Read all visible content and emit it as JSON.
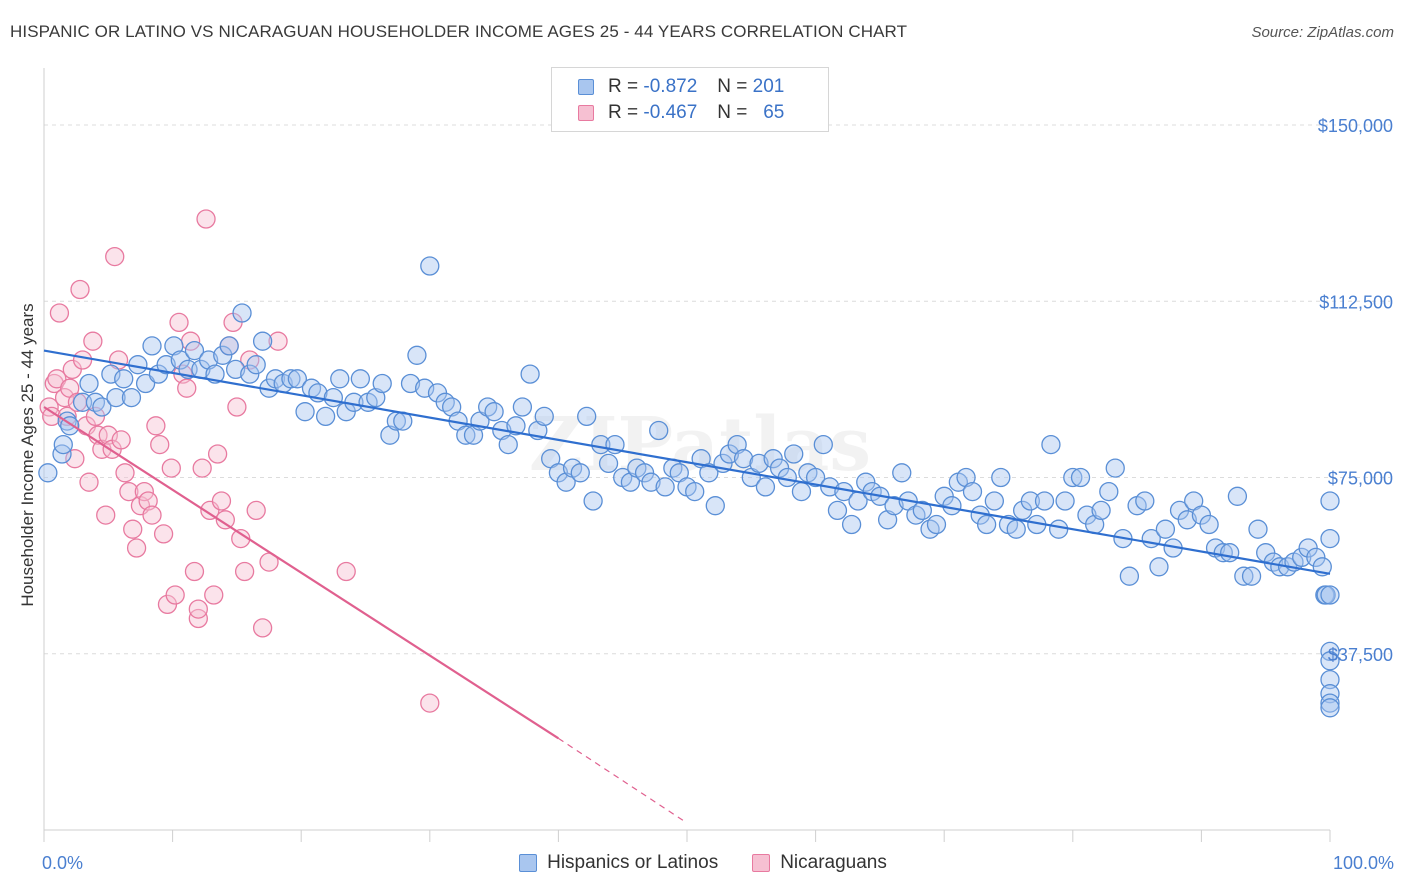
{
  "title": "HISPANIC OR LATINO VS NICARAGUAN HOUSEHOLDER INCOME AGES 25 - 44 YEARS CORRELATION CHART",
  "source": "Source: ZipAtlas.com",
  "watermark": "ZIPatlas",
  "colors": {
    "blue": "#5a8fd6",
    "blue_fill": "#a9c6ef",
    "blue_line": "#2f6fcf",
    "pink": "#e87aa0",
    "pink_fill": "#f6c0d2",
    "pink_line": "#e0608f",
    "tick_label": "#4a7fd0"
  },
  "legend": {
    "rows": [
      {
        "r_label": "R =",
        "r_value": "-0.872",
        "n_label": "N =",
        "n_value": "201"
      },
      {
        "r_label": "R =",
        "r_value": "-0.467",
        "n_label": "N =",
        "n_value": "65"
      }
    ]
  },
  "bottom_legend": [
    "Hispanics or Latinos",
    "Nicaraguans"
  ],
  "chart_data": {
    "type": "scatter",
    "xlabel": "",
    "ylabel": "Householder Income Ages 25 - 44 years",
    "xlim": [
      0,
      100
    ],
    "ylim": [
      0,
      160000
    ],
    "x_tick_labels": [
      "0.0%",
      "100.0%"
    ],
    "y_ticks": [
      37500,
      75000,
      112500,
      150000
    ],
    "y_tick_labels": [
      "$37,500",
      "$75,000",
      "$112,500",
      "$150,000"
    ],
    "grid": true,
    "series": [
      {
        "name": "Hispanics or Latinos",
        "trend": {
          "x": [
            0,
            100
          ],
          "y": [
            102000,
            54500
          ]
        },
        "points": [
          [
            0.3,
            76000
          ],
          [
            1.4,
            80000
          ],
          [
            1.5,
            82000
          ],
          [
            1.8,
            87000
          ],
          [
            2.0,
            86000
          ],
          [
            3.0,
            91000
          ],
          [
            3.5,
            95000
          ],
          [
            4.0,
            91000
          ],
          [
            4.5,
            90000
          ],
          [
            5.2,
            97000
          ],
          [
            5.6,
            92000
          ],
          [
            6.2,
            96000
          ],
          [
            6.8,
            92000
          ],
          [
            7.3,
            99000
          ],
          [
            7.9,
            95000
          ],
          [
            8.4,
            103000
          ],
          [
            8.9,
            97000
          ],
          [
            9.5,
            99000
          ],
          [
            10.1,
            103000
          ],
          [
            10.6,
            100000
          ],
          [
            11.2,
            98000
          ],
          [
            11.7,
            102000
          ],
          [
            12.2,
            98000
          ],
          [
            12.8,
            100000
          ],
          [
            13.3,
            97000
          ],
          [
            13.9,
            101000
          ],
          [
            14.4,
            103000
          ],
          [
            14.9,
            98000
          ],
          [
            15.4,
            110000
          ],
          [
            16.0,
            97000
          ],
          [
            16.5,
            99000
          ],
          [
            17.0,
            104000
          ],
          [
            17.5,
            94000
          ],
          [
            18.0,
            96000
          ],
          [
            18.6,
            95000
          ],
          [
            19.2,
            96000
          ],
          [
            19.7,
            96000
          ],
          [
            20.3,
            89000
          ],
          [
            20.8,
            94000
          ],
          [
            21.3,
            93000
          ],
          [
            21.9,
            88000
          ],
          [
            22.5,
            92000
          ],
          [
            23.0,
            96000
          ],
          [
            23.5,
            89000
          ],
          [
            24.1,
            91000
          ],
          [
            24.6,
            96000
          ],
          [
            25.2,
            91000
          ],
          [
            25.8,
            92000
          ],
          [
            26.3,
            95000
          ],
          [
            26.9,
            84000
          ],
          [
            27.4,
            87000
          ],
          [
            27.9,
            87000
          ],
          [
            28.5,
            95000
          ],
          [
            29.0,
            101000
          ],
          [
            29.6,
            94000
          ],
          [
            30.0,
            120000
          ],
          [
            30.6,
            93000
          ],
          [
            31.2,
            91000
          ],
          [
            31.7,
            90000
          ],
          [
            32.2,
            87000
          ],
          [
            32.8,
            84000
          ],
          [
            33.4,
            84000
          ],
          [
            33.9,
            87000
          ],
          [
            34.5,
            90000
          ],
          [
            35.0,
            89000
          ],
          [
            35.6,
            85000
          ],
          [
            36.1,
            82000
          ],
          [
            36.7,
            86000
          ],
          [
            37.2,
            90000
          ],
          [
            37.8,
            97000
          ],
          [
            38.4,
            85000
          ],
          [
            38.9,
            88000
          ],
          [
            39.4,
            79000
          ],
          [
            40.0,
            76000
          ],
          [
            40.6,
            74000
          ],
          [
            41.1,
            77000
          ],
          [
            41.7,
            76000
          ],
          [
            42.2,
            88000
          ],
          [
            42.7,
            70000
          ],
          [
            43.3,
            82000
          ],
          [
            43.9,
            78000
          ],
          [
            44.4,
            82000
          ],
          [
            45.0,
            75000
          ],
          [
            45.6,
            74000
          ],
          [
            46.1,
            77000
          ],
          [
            46.7,
            76000
          ],
          [
            47.2,
            74000
          ],
          [
            47.8,
            85000
          ],
          [
            48.3,
            73000
          ],
          [
            48.9,
            77000
          ],
          [
            49.4,
            76000
          ],
          [
            50.0,
            73000
          ],
          [
            50.6,
            72000
          ],
          [
            51.1,
            79000
          ],
          [
            51.7,
            76000
          ],
          [
            52.2,
            69000
          ],
          [
            52.8,
            78000
          ],
          [
            53.3,
            80000
          ],
          [
            53.9,
            82000
          ],
          [
            54.4,
            79000
          ],
          [
            55.0,
            75000
          ],
          [
            55.6,
            78000
          ],
          [
            56.1,
            73000
          ],
          [
            56.7,
            79000
          ],
          [
            57.2,
            77000
          ],
          [
            57.8,
            75000
          ],
          [
            58.3,
            80000
          ],
          [
            58.9,
            72000
          ],
          [
            59.4,
            76000
          ],
          [
            60.0,
            75000
          ],
          [
            60.6,
            82000
          ],
          [
            61.1,
            73000
          ],
          [
            61.7,
            68000
          ],
          [
            62.2,
            72000
          ],
          [
            62.8,
            65000
          ],
          [
            63.3,
            70000
          ],
          [
            63.9,
            74000
          ],
          [
            64.4,
            72000
          ],
          [
            65.0,
            71000
          ],
          [
            65.6,
            66000
          ],
          [
            66.1,
            69000
          ],
          [
            66.7,
            76000
          ],
          [
            67.2,
            70000
          ],
          [
            67.8,
            67000
          ],
          [
            68.3,
            68000
          ],
          [
            68.9,
            64000
          ],
          [
            69.4,
            65000
          ],
          [
            70.0,
            71000
          ],
          [
            70.6,
            69000
          ],
          [
            71.1,
            74000
          ],
          [
            71.7,
            75000
          ],
          [
            72.2,
            72000
          ],
          [
            72.8,
            67000
          ],
          [
            73.3,
            65000
          ],
          [
            73.9,
            70000
          ],
          [
            74.4,
            75000
          ],
          [
            75.0,
            65000
          ],
          [
            75.6,
            64000
          ],
          [
            76.1,
            68000
          ],
          [
            76.7,
            70000
          ],
          [
            77.2,
            65000
          ],
          [
            77.8,
            70000
          ],
          [
            78.3,
            82000
          ],
          [
            78.9,
            64000
          ],
          [
            79.4,
            70000
          ],
          [
            80.0,
            75000
          ],
          [
            80.6,
            75000
          ],
          [
            81.1,
            67000
          ],
          [
            81.7,
            65000
          ],
          [
            82.2,
            68000
          ],
          [
            82.8,
            72000
          ],
          [
            83.3,
            77000
          ],
          [
            83.9,
            62000
          ],
          [
            84.4,
            54000
          ],
          [
            85.0,
            69000
          ],
          [
            85.6,
            70000
          ],
          [
            86.1,
            62000
          ],
          [
            86.7,
            56000
          ],
          [
            87.2,
            64000
          ],
          [
            87.8,
            60000
          ],
          [
            88.3,
            68000
          ],
          [
            88.9,
            66000
          ],
          [
            89.4,
            70000
          ],
          [
            90.0,
            67000
          ],
          [
            90.6,
            65000
          ],
          [
            91.1,
            60000
          ],
          [
            91.7,
            59000
          ],
          [
            92.2,
            59000
          ],
          [
            92.8,
            71000
          ],
          [
            93.3,
            54000
          ],
          [
            93.9,
            54000
          ],
          [
            94.4,
            64000
          ],
          [
            95.0,
            59000
          ],
          [
            95.6,
            57000
          ],
          [
            96.1,
            56000
          ],
          [
            96.7,
            56000
          ],
          [
            97.2,
            57000
          ],
          [
            97.8,
            58000
          ],
          [
            98.3,
            60000
          ],
          [
            98.9,
            58000
          ],
          [
            99.4,
            56000
          ],
          [
            99.6,
            50000
          ],
          [
            99.7,
            50000
          ],
          [
            100.0,
            50000
          ],
          [
            100.0,
            38000
          ],
          [
            100.0,
            36000
          ],
          [
            100.0,
            32000
          ],
          [
            100.0,
            29000
          ],
          [
            100.0,
            27000
          ],
          [
            100.0,
            26000
          ],
          [
            100.0,
            62000
          ],
          [
            100.0,
            70000
          ]
        ]
      },
      {
        "name": "Nicaraguans",
        "trend": {
          "x": [
            0,
            40
          ],
          "y": [
            90000,
            19500
          ]
        },
        "trend_dashed": {
          "x": [
            40,
            50
          ],
          "y": [
            19500,
            1500
          ]
        },
        "points": [
          [
            0.4,
            90000
          ],
          [
            0.6,
            88000
          ],
          [
            0.8,
            95000
          ],
          [
            1.0,
            96000
          ],
          [
            1.2,
            110000
          ],
          [
            1.6,
            92000
          ],
          [
            1.8,
            88000
          ],
          [
            2.0,
            94000
          ],
          [
            2.2,
            98000
          ],
          [
            2.4,
            79000
          ],
          [
            2.6,
            91000
          ],
          [
            2.8,
            115000
          ],
          [
            3.0,
            100000
          ],
          [
            3.3,
            86000
          ],
          [
            3.5,
            74000
          ],
          [
            3.8,
            104000
          ],
          [
            4.0,
            88000
          ],
          [
            4.2,
            84000
          ],
          [
            4.5,
            81000
          ],
          [
            4.8,
            67000
          ],
          [
            5.0,
            84000
          ],
          [
            5.3,
            81000
          ],
          [
            5.5,
            122000
          ],
          [
            5.8,
            100000
          ],
          [
            6.0,
            83000
          ],
          [
            6.3,
            76000
          ],
          [
            6.6,
            72000
          ],
          [
            6.9,
            64000
          ],
          [
            7.2,
            60000
          ],
          [
            7.5,
            69000
          ],
          [
            7.8,
            72000
          ],
          [
            8.1,
            70000
          ],
          [
            8.4,
            67000
          ],
          [
            8.7,
            86000
          ],
          [
            9.0,
            82000
          ],
          [
            9.3,
            63000
          ],
          [
            9.6,
            48000
          ],
          [
            9.9,
            77000
          ],
          [
            10.2,
            50000
          ],
          [
            10.5,
            108000
          ],
          [
            10.8,
            97000
          ],
          [
            11.1,
            94000
          ],
          [
            11.4,
            104000
          ],
          [
            11.7,
            55000
          ],
          [
            12.0,
            45000
          ],
          [
            12.3,
            77000
          ],
          [
            12.6,
            130000
          ],
          [
            12.9,
            68000
          ],
          [
            13.2,
            50000
          ],
          [
            13.5,
            80000
          ],
          [
            13.8,
            70000
          ],
          [
            14.1,
            66000
          ],
          [
            14.4,
            103000
          ],
          [
            14.7,
            108000
          ],
          [
            15.0,
            90000
          ],
          [
            15.3,
            62000
          ],
          [
            15.6,
            55000
          ],
          [
            16.0,
            100000
          ],
          [
            16.5,
            68000
          ],
          [
            17.0,
            43000
          ],
          [
            17.5,
            57000
          ],
          [
            18.2,
            104000
          ],
          [
            23.5,
            55000
          ],
          [
            30.0,
            27000
          ],
          [
            12.0,
            47000
          ]
        ]
      }
    ]
  }
}
